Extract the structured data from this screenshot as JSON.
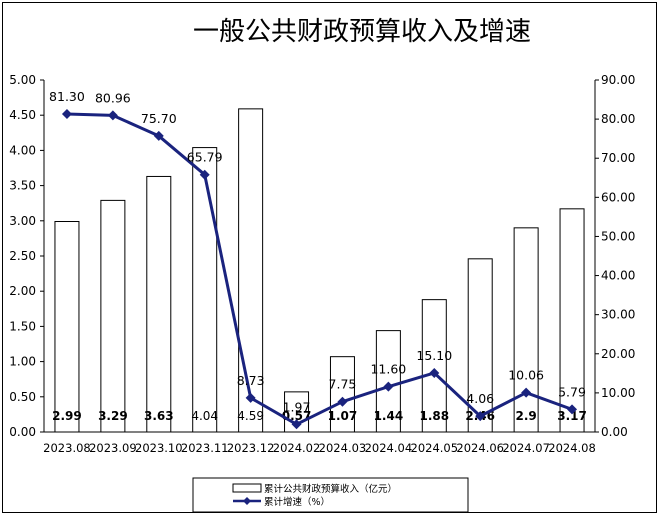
{
  "chart_data": {
    "type": "bar",
    "title": "一般公共财政预算收入及增速",
    "categories": [
      "2023.08",
      "2023.09",
      "2023.10",
      "2023.11",
      "2023.12",
      "2024.02",
      "2024.03",
      "2024.04",
      "2024.05",
      "2024.06",
      "2024.07",
      "2024.08"
    ],
    "series": [
      {
        "name": "累计公共财政预算收入（亿元）",
        "type": "bar",
        "axis": "left",
        "values": [
          2.99,
          3.29,
          3.63,
          4.04,
          4.59,
          0.57,
          1.07,
          1.44,
          1.88,
          2.46,
          2.9,
          3.17
        ],
        "labels": [
          "2.99",
          "3.29",
          "3.63",
          "4.04",
          "4.59",
          "0.57",
          "1.07",
          "1.44",
          "1.88",
          "2.46",
          "2.9",
          "3.17"
        ],
        "label_bold": [
          true,
          true,
          true,
          false,
          false,
          true,
          true,
          true,
          true,
          true,
          true,
          true
        ],
        "color": "#ffffff",
        "stroke": "#000000"
      },
      {
        "name": "累计增速（%）",
        "type": "line",
        "axis": "right",
        "values": [
          81.3,
          80.96,
          75.7,
          65.79,
          8.73,
          1.97,
          7.75,
          11.6,
          15.1,
          4.06,
          10.06,
          5.79
        ],
        "labels": [
          "81.30",
          "80.96",
          "75.70",
          "65.79",
          "8.73",
          "1.97",
          "7.75",
          "11.60",
          "15.10",
          "4.06",
          "10.06",
          "5.79"
        ],
        "color": "#1a237e",
        "marker": "diamond"
      }
    ],
    "y_left": {
      "ylim": [
        0,
        5
      ],
      "ticks": [
        "0.00",
        "0.50",
        "1.00",
        "1.50",
        "2.00",
        "2.50",
        "3.00",
        "3.50",
        "4.00",
        "4.50",
        "5.00"
      ]
    },
    "y_right": {
      "ylim": [
        0,
        90
      ],
      "ticks": [
        "0.00",
        "10.00",
        "20.00",
        "30.00",
        "40.00",
        "50.00",
        "60.00",
        "70.00",
        "80.00",
        "90.00"
      ]
    },
    "grid": false,
    "legend_position": "bottom-center"
  }
}
